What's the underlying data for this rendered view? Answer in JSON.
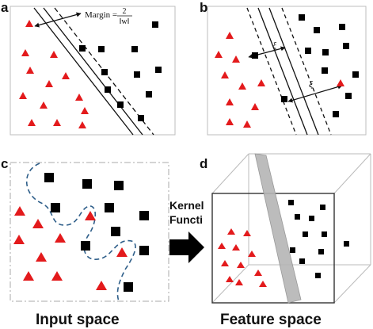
{
  "panels": {
    "a": {
      "label": "a",
      "margin_text": "Margin =",
      "frac_num": "2",
      "frac_den": "‖w‖"
    },
    "b": {
      "label": "b",
      "xi_upper": "ξ",
      "xi_lower": "ξ"
    },
    "c": {
      "label": "c",
      "caption": "Input space"
    },
    "d": {
      "label": "d",
      "caption": "Feature space"
    }
  },
  "kernel": {
    "line1": "Kernel",
    "line2": "Functi"
  },
  "colors": {
    "triangle": "#e31a1c",
    "square": "#000000",
    "boundary": "#2f5f8a",
    "plane": "#b5b5b5",
    "frame": "#bbbbbb"
  },
  "icons": {
    "class_a": "red-triangle-icon",
    "class_b": "black-square-icon",
    "arrow": "right-arrow-icon"
  }
}
